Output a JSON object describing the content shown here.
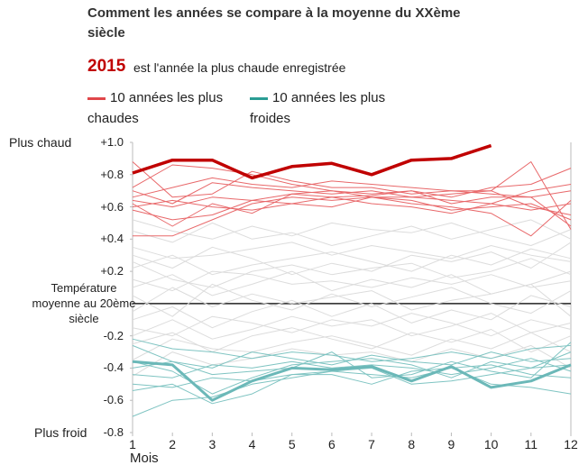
{
  "chart_data": {
    "type": "line",
    "title": "Comment les années se compare à la moyenne du XXème siècle",
    "subtitle": "est l'année la plus chaude enregistrée",
    "legend": [
      {
        "label": "10 années les plus chaudes",
        "color": "#e0464a"
      },
      {
        "label": "10 années les plus froides",
        "color": "#2a9d94"
      }
    ],
    "annotations": [
      "Plus chaud",
      "Plus froid"
    ],
    "xlabel": "Mois",
    "x": [
      1,
      2,
      3,
      4,
      5,
      6,
      7,
      8,
      9,
      10,
      11,
      12
    ],
    "xlim": [
      1,
      12
    ],
    "xticks": [
      1,
      2,
      3,
      4,
      5,
      6,
      7,
      8,
      9,
      10,
      11,
      12
    ],
    "ylim": [
      -0.8,
      1.0
    ],
    "yticks": [
      {
        "value": 1.0,
        "label": "+1.0"
      },
      {
        "value": 0.8,
        "label": "+0.8"
      },
      {
        "value": 0.6,
        "label": "+0.6"
      },
      {
        "value": 0.4,
        "label": "+0.4"
      },
      {
        "value": 0.2,
        "label": "+0.2"
      },
      {
        "value": 0,
        "label": "Température moyenne au 20ème siècle"
      },
      -0.2,
      -0.4,
      -0.6,
      -0.8
    ],
    "grid": false,
    "series": [
      {
        "color": "#dcdcdc",
        "width": 1,
        "values": [
          0.3,
          0.22,
          0.35,
          0.28,
          0.18,
          0.25,
          0.2,
          0.3,
          0.26,
          0.32,
          0.22,
          0.38
        ]
      },
      {
        "color": "#dcdcdc",
        "width": 1,
        "values": [
          0.1,
          0.18,
          0.05,
          0.12,
          0.2,
          0.08,
          0.15,
          0.1,
          0.18,
          0.06,
          0.12,
          0.2
        ]
      },
      {
        "color": "#dcdcdc",
        "width": 1,
        "values": [
          -0.1,
          -0.02,
          -0.15,
          -0.05,
          0.02,
          -0.08,
          0.0,
          -0.12,
          -0.04,
          -0.1,
          0.05,
          -0.02
        ]
      },
      {
        "color": "#dcdcdc",
        "width": 1,
        "values": [
          -0.25,
          -0.18,
          -0.3,
          -0.2,
          -0.15,
          -0.22,
          -0.28,
          -0.18,
          -0.24,
          -0.16,
          -0.3,
          -0.2
        ]
      },
      {
        "color": "#dcdcdc",
        "width": 1,
        "values": [
          0.45,
          0.38,
          0.5,
          0.4,
          0.44,
          0.36,
          0.42,
          0.48,
          0.4,
          0.46,
          0.52,
          0.4
        ]
      },
      {
        "color": "#dcdcdc",
        "width": 1,
        "values": [
          0.05,
          -0.08,
          0.12,
          0.02,
          -0.04,
          0.06,
          -0.02,
          0.04,
          0.1,
          0.0,
          -0.06,
          0.08
        ]
      },
      {
        "color": "#dcdcdc",
        "width": 1,
        "values": [
          -0.35,
          -0.22,
          -0.28,
          -0.3,
          -0.24,
          -0.2,
          -0.26,
          -0.32,
          -0.22,
          -0.28,
          -0.18,
          -0.3
        ]
      },
      {
        "color": "#dcdcdc",
        "width": 1,
        "values": [
          0.22,
          0.3,
          0.18,
          0.24,
          0.28,
          0.32,
          0.26,
          0.2,
          0.3,
          0.24,
          0.34,
          0.28
        ]
      },
      {
        "color": "#dcdcdc",
        "width": 1,
        "values": [
          -0.15,
          -0.2,
          -0.08,
          -0.12,
          -0.18,
          -0.1,
          -0.14,
          -0.06,
          -0.12,
          -0.2,
          -0.1,
          -0.16
        ]
      },
      {
        "color": "#dcdcdc",
        "width": 1,
        "values": [
          0.52,
          0.45,
          0.4,
          0.48,
          0.42,
          0.5,
          0.46,
          0.44,
          0.5,
          0.42,
          0.36,
          0.46
        ]
      },
      {
        "color": "#dcdcdc",
        "width": 1,
        "values": [
          0.15,
          0.08,
          0.2,
          0.18,
          0.12,
          0.14,
          0.1,
          0.16,
          0.12,
          0.18,
          0.1,
          0.14
        ]
      },
      {
        "color": "#dcdcdc",
        "width": 1,
        "values": [
          -0.05,
          0.1,
          -0.02,
          0.06,
          0.0,
          0.04,
          0.08,
          -0.04,
          0.02,
          0.06,
          0.12,
          -0.08
        ]
      },
      {
        "color": "#dcdcdc",
        "width": 1,
        "values": [
          0.35,
          0.28,
          0.3,
          0.34,
          0.38,
          0.3,
          0.36,
          0.32,
          0.28,
          0.36,
          0.3,
          0.26
        ]
      },
      {
        "color": "#dcdcdc",
        "width": 1,
        "values": [
          -0.45,
          -0.3,
          -0.38,
          -0.34,
          -0.28,
          -0.32,
          -0.3,
          -0.36,
          -0.28,
          -0.34,
          -0.26,
          -0.4
        ]
      },
      {
        "color": "#dcdcdc",
        "width": 1,
        "values": [
          0.26,
          0.15,
          0.1,
          0.2,
          0.24,
          0.18,
          0.22,
          0.25,
          0.16,
          0.2,
          0.28,
          0.18
        ]
      },
      {
        "color": "#dcdcdc",
        "width": 1,
        "values": [
          -0.2,
          -0.1,
          -0.22,
          -0.16,
          -0.08,
          -0.14,
          -0.1,
          -0.2,
          -0.14,
          -0.06,
          -0.18,
          -0.12
        ]
      },
      {
        "color": "#e8686a",
        "width": 1,
        "values": [
          0.7,
          0.62,
          0.75,
          0.72,
          0.7,
          0.68,
          0.7,
          0.66,
          0.68,
          0.7,
          0.6,
          0.55
        ]
      },
      {
        "color": "#e8686a",
        "width": 1,
        "values": [
          0.62,
          0.48,
          0.62,
          0.56,
          0.68,
          0.66,
          0.62,
          0.6,
          0.56,
          0.62,
          0.58,
          0.62
        ]
      },
      {
        "color": "#e8686a",
        "width": 1,
        "values": [
          0.58,
          0.52,
          0.55,
          0.64,
          0.62,
          0.66,
          0.67,
          0.7,
          0.62,
          0.66,
          0.66,
          0.48
        ]
      },
      {
        "color": "#e8686a",
        "width": 1,
        "values": [
          0.88,
          0.66,
          0.68,
          0.82,
          0.76,
          0.72,
          0.72,
          0.68,
          0.7,
          0.7,
          0.88,
          0.46
        ]
      },
      {
        "color": "#e8686a",
        "width": 1,
        "values": [
          0.42,
          0.42,
          0.52,
          0.62,
          0.66,
          0.64,
          0.66,
          0.62,
          0.6,
          0.56,
          0.42,
          0.64
        ]
      },
      {
        "color": "#e8686a",
        "width": 1,
        "values": [
          0.64,
          0.6,
          0.66,
          0.64,
          0.68,
          0.7,
          0.68,
          0.7,
          0.66,
          0.72,
          0.74,
          0.84
        ]
      },
      {
        "color": "#e8686a",
        "width": 1,
        "values": [
          0.66,
          0.72,
          0.78,
          0.74,
          0.72,
          0.76,
          0.74,
          0.72,
          0.7,
          0.68,
          0.66,
          0.7
        ]
      },
      {
        "color": "#e8686a",
        "width": 1,
        "values": [
          0.6,
          0.64,
          0.6,
          0.58,
          0.62,
          0.6,
          0.66,
          0.64,
          0.58,
          0.6,
          0.62,
          0.52
        ]
      },
      {
        "color": "#e8686a",
        "width": 1,
        "values": [
          0.72,
          0.86,
          0.84,
          0.8,
          0.74,
          0.7,
          0.66,
          0.66,
          0.64,
          0.62,
          0.7,
          0.74
        ]
      },
      {
        "color": "#7fc4c2",
        "width": 1,
        "values": [
          -0.7,
          -0.6,
          -0.58,
          -0.5,
          -0.46,
          -0.42,
          -0.44,
          -0.46,
          -0.4,
          -0.5,
          -0.52,
          -0.56
        ]
      },
      {
        "color": "#7fc4c2",
        "width": 1,
        "values": [
          -0.54,
          -0.5,
          -0.62,
          -0.56,
          -0.44,
          -0.42,
          -0.4,
          -0.5,
          -0.48,
          -0.44,
          -0.4,
          -0.38
        ]
      },
      {
        "color": "#7fc4c2",
        "width": 1,
        "values": [
          -0.26,
          -0.36,
          -0.44,
          -0.42,
          -0.4,
          -0.3,
          -0.46,
          -0.44,
          -0.36,
          -0.42,
          -0.46,
          -0.24
        ]
      },
      {
        "color": "#7fc4c2",
        "width": 1,
        "values": [
          -0.44,
          -0.46,
          -0.38,
          -0.4,
          -0.36,
          -0.4,
          -0.38,
          -0.4,
          -0.44,
          -0.4,
          -0.34,
          -0.42
        ]
      },
      {
        "color": "#7fc4c2",
        "width": 1,
        "values": [
          -0.36,
          -0.42,
          -0.56,
          -0.46,
          -0.38,
          -0.36,
          -0.34,
          -0.38,
          -0.46,
          -0.36,
          -0.4,
          -0.3
        ]
      },
      {
        "color": "#7fc4c2",
        "width": 1,
        "values": [
          -0.22,
          -0.28,
          -0.3,
          -0.34,
          -0.3,
          -0.32,
          -0.36,
          -0.34,
          -0.3,
          -0.34,
          -0.28,
          -0.26
        ]
      },
      {
        "color": "#7fc4c2",
        "width": 1,
        "values": [
          -0.5,
          -0.52,
          -0.46,
          -0.48,
          -0.44,
          -0.44,
          -0.5,
          -0.42,
          -0.4,
          -0.38,
          -0.44,
          -0.46
        ]
      },
      {
        "color": "#7fc4c2",
        "width": 1,
        "values": [
          -0.4,
          -0.36,
          -0.4,
          -0.3,
          -0.34,
          -0.38,
          -0.32,
          -0.36,
          -0.38,
          -0.3,
          -0.36,
          -0.34
        ]
      },
      {
        "color": "#6bb8b8",
        "width": 3,
        "values": [
          -0.36,
          -0.38,
          -0.6,
          -0.48,
          -0.4,
          -0.41,
          -0.39,
          -0.48,
          -0.39,
          -0.52,
          -0.48,
          -0.38
        ]
      },
      {
        "name": "2015",
        "color": "#c00000",
        "width": 3.5,
        "values": [
          0.81,
          0.89,
          0.89,
          0.78,
          0.85,
          0.87,
          0.8,
          0.89,
          0.9,
          0.98,
          null,
          null
        ]
      }
    ]
  }
}
